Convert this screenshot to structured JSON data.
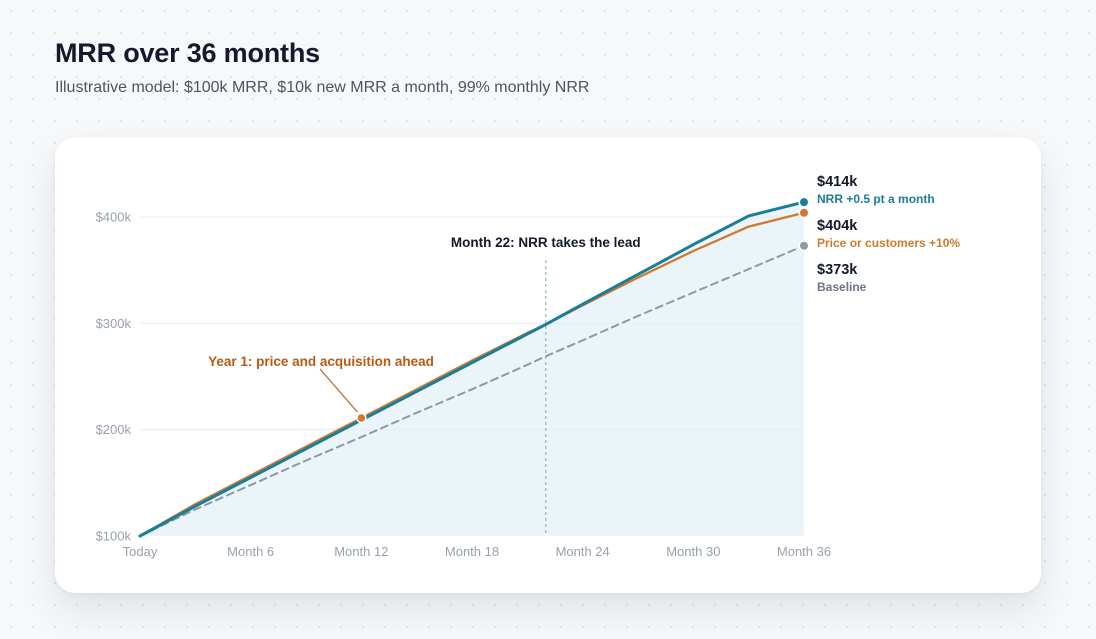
{
  "header": {
    "title": "MRR over 36 months",
    "subtitle": "Illustrative model: $100k MRR, $10k new MRR a month, 99% monthly NRR"
  },
  "colors": {
    "nrr": "#1a7d99",
    "price": "#d07a2e",
    "baseline": "#8b99a8",
    "annotation_year1": "#b85a16",
    "annotation_m22": "#141a2b"
  },
  "chart_data": {
    "type": "line",
    "title": "MRR over 36 months",
    "subtitle": "Illustrative model: $100k MRR, $10k new MRR a month, 99% monthly NRR",
    "x_ticks": [
      {
        "x": 0,
        "label": "Today"
      },
      {
        "x": 6,
        "label": "Month 6"
      },
      {
        "x": 12,
        "label": "Month 12"
      },
      {
        "x": 18,
        "label": "Month 18"
      },
      {
        "x": 24,
        "label": "Month 24"
      },
      {
        "x": 30,
        "label": "Month 30"
      },
      {
        "x": 36,
        "label": "Month 36"
      }
    ],
    "y_ticks": [
      {
        "y": 100,
        "label": "$100k"
      },
      {
        "y": 200,
        "label": "$200k"
      },
      {
        "y": 300,
        "label": "$300k"
      },
      {
        "y": 400,
        "label": "$400k"
      }
    ],
    "xlim": [
      0,
      36
    ],
    "ylim": [
      100,
      400
    ],
    "grid": true,
    "series": [
      {
        "name": "NRR +0.5 pt a month",
        "color": "#1a7d99",
        "style": "solid",
        "end_value_label": "$414k",
        "x": [
          0,
          3,
          6,
          9,
          12,
          15,
          18,
          21,
          22,
          24,
          27,
          30,
          33,
          36
        ],
        "y": [
          100,
          128,
          155,
          182,
          209,
          236,
          263,
          290,
          299,
          318,
          346,
          374,
          401,
          414
        ]
      },
      {
        "name": "Price or customers +10%",
        "color": "#d07a2e",
        "style": "solid",
        "end_value_label": "$404k",
        "x": [
          0,
          3,
          6,
          9,
          12,
          15,
          18,
          21,
          22,
          24,
          27,
          30,
          33,
          36
        ],
        "y": [
          100,
          130,
          157,
          184,
          211,
          238,
          265,
          291,
          299,
          317,
          343,
          368,
          391,
          404
        ]
      },
      {
        "name": "Baseline",
        "color": "#8b99a8",
        "style": "dashed",
        "end_value_label": "$373k",
        "x": [
          0,
          3,
          6,
          9,
          12,
          15,
          18,
          21,
          22,
          24,
          27,
          30,
          33,
          36
        ],
        "y": [
          100,
          125,
          148,
          171,
          193,
          216,
          238,
          261,
          269,
          284,
          307,
          329,
          351,
          373
        ]
      }
    ],
    "annotations": [
      {
        "text": "Year 1: price and acquisition ahead",
        "x": 12,
        "y": 211,
        "color": "#b85a16"
      },
      {
        "text": "Month 22: NRR takes the lead",
        "x": 22,
        "color": "#141a2b"
      }
    ]
  }
}
